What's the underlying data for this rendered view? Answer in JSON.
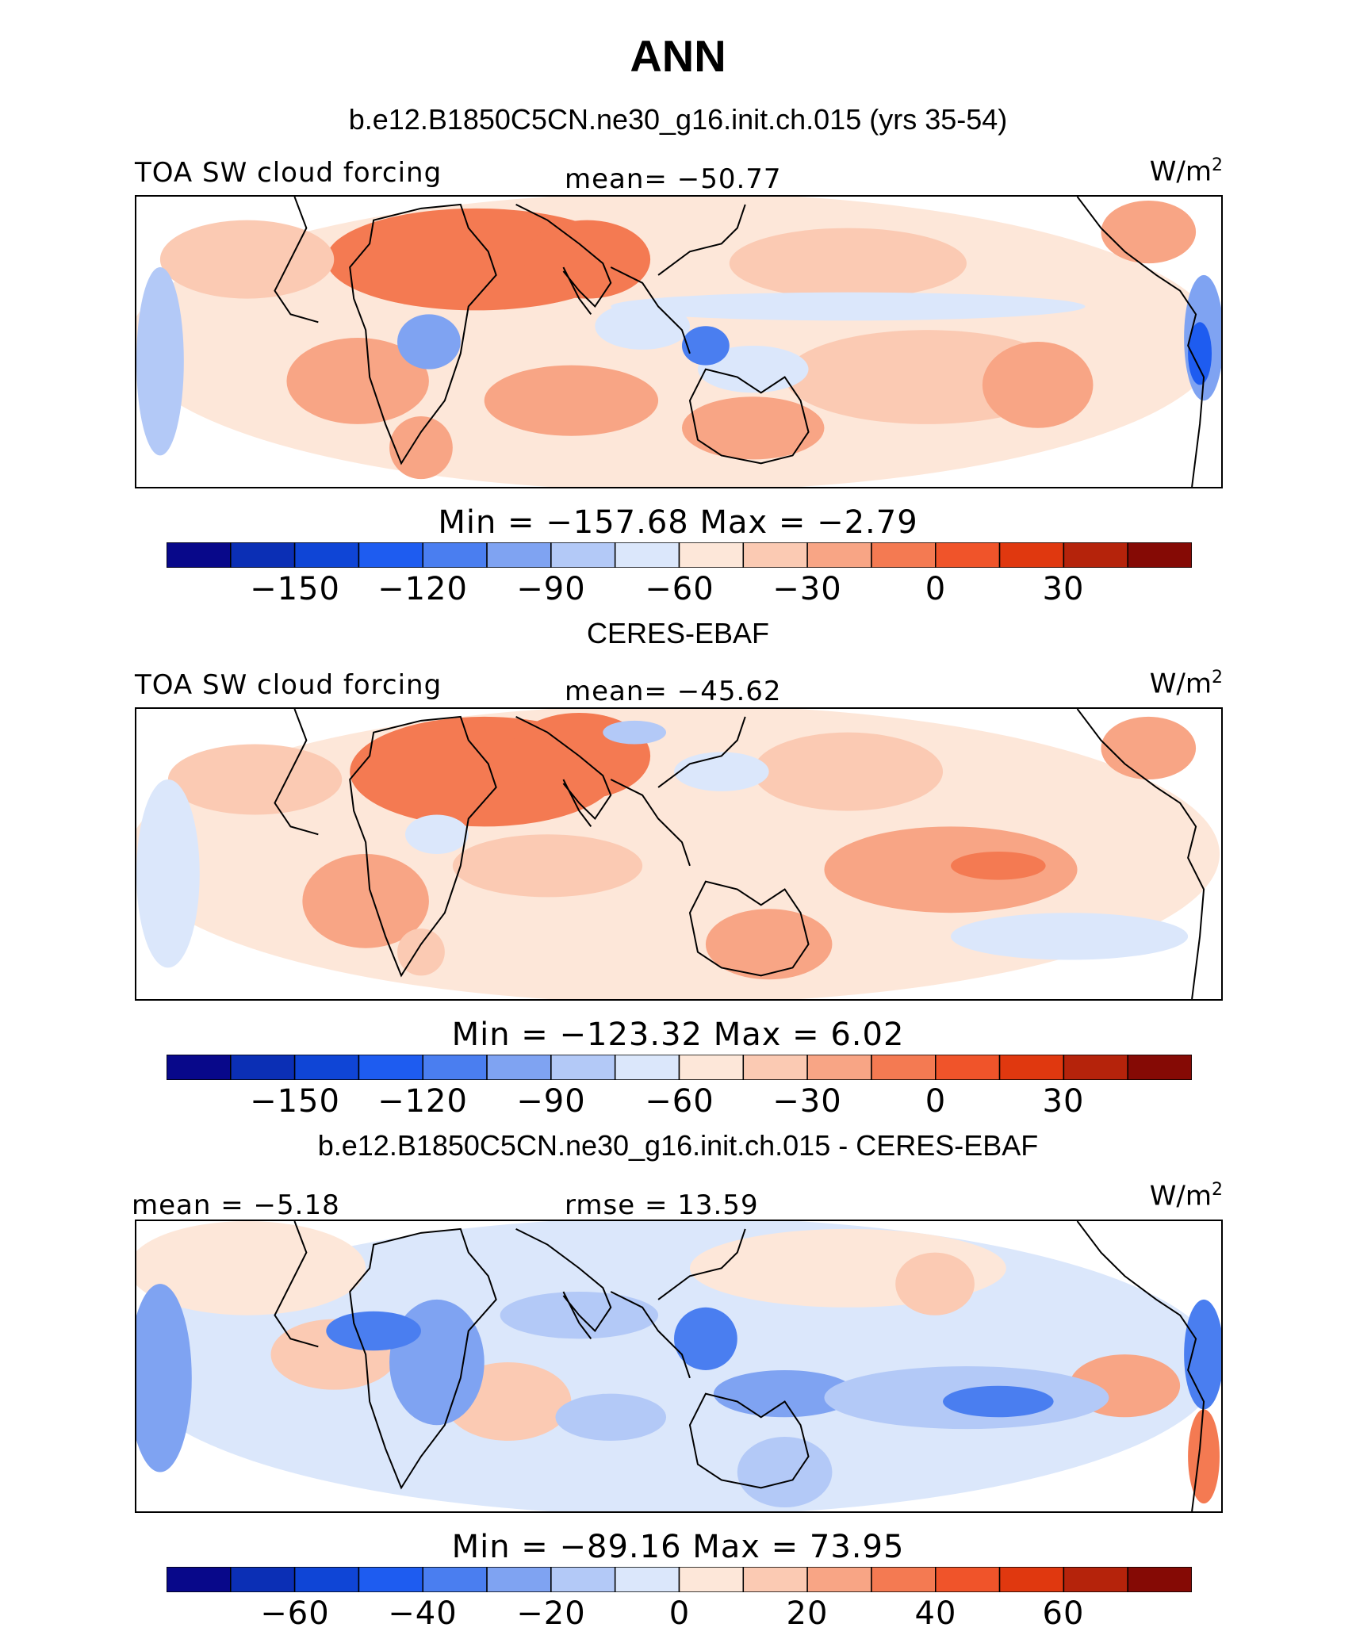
{
  "title": "ANN",
  "panels": [
    {
      "subtitle": "b.e12.B1850C5CN.ne30_g16.init.ch.015 (yrs 35-54)",
      "left": "TOA SW cloud forcing",
      "mid": "mean= −50.77",
      "unit_base": "W/m",
      "unit_sup": "2",
      "minmax": "Min  =  −157.68  Max  =   −2.79",
      "ticks": [
        "−150",
        "−120",
        "−90",
        "−60",
        "−30",
        "0",
        "30"
      ],
      "scheme": "model"
    },
    {
      "subtitle": "CERES-EBAF",
      "left": "TOA SW cloud forcing",
      "mid": "mean= −45.62",
      "unit_base": "W/m",
      "unit_sup": "2",
      "minmax": "Min  =  −123.32  Max  =     6.02",
      "ticks": [
        "−150",
        "−120",
        "−90",
        "−60",
        "−30",
        "0",
        "30"
      ],
      "scheme": "obs"
    },
    {
      "subtitle": "b.e12.B1850C5CN.ne30_g16.init.ch.015 - CERES-EBAF",
      "left": "mean =   −5.18",
      "mid": "rmse =   13.59",
      "unit_base": "W/m",
      "unit_sup": "2",
      "minmax": "Min  =  −89.16  Max  =   73.95",
      "ticks": [
        "−60",
        "−40",
        "−20",
        "0",
        "20",
        "40",
        "60"
      ],
      "scheme": "diff"
    }
  ],
  "colorbar_colors": [
    "#08088a",
    "#0b2fb5",
    "#0f45d6",
    "#1e5cf0",
    "#4a7ef0",
    "#7fa3f2",
    "#b3c9f7",
    "#dbe7fb",
    "#fde7d9",
    "#fbcab3",
    "#f8a585",
    "#f47a52",
    "#f0542a",
    "#e0380f",
    "#b5230b",
    "#850a05"
  ],
  "chart_data": [
    {
      "type": "heatmap",
      "title": "b.e12.B1850C5CN.ne30_g16.init.ch.015 (yrs 35-54)",
      "variable": "TOA SW cloud forcing",
      "units": "W/m2",
      "mean": -50.77,
      "min": -157.68,
      "max": -2.79,
      "colorbar_ticks": [
        -150,
        -120,
        -90,
        -60,
        -30,
        0,
        30
      ]
    },
    {
      "type": "heatmap",
      "title": "CERES-EBAF",
      "variable": "TOA SW cloud forcing",
      "units": "W/m2",
      "mean": -45.62,
      "min": -123.32,
      "max": 6.02,
      "colorbar_ticks": [
        -150,
        -120,
        -90,
        -60,
        -30,
        0,
        30
      ]
    },
    {
      "type": "heatmap",
      "title": "b.e12.B1850C5CN.ne30_g16.init.ch.015 - CERES-EBAF",
      "units": "W/m2",
      "mean": -5.18,
      "rmse": 13.59,
      "min": -89.16,
      "max": 73.95,
      "colorbar_ticks": [
        -60,
        -40,
        -20,
        0,
        20,
        40,
        60
      ]
    }
  ]
}
